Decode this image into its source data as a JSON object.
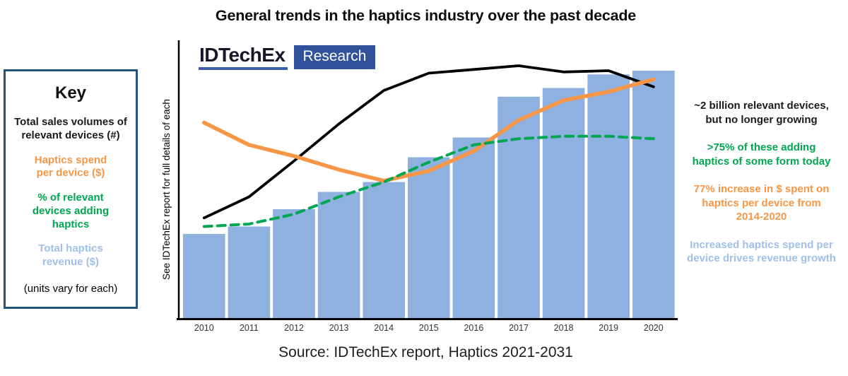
{
  "title": "General trends in the haptics industry over the past decade",
  "logo": {
    "brand": "IDTechEx",
    "sub": "Research"
  },
  "key": {
    "heading": "Key",
    "items": [
      {
        "text": "Total sales volumes of\nrelevant devices (#)",
        "color": "#1a1a1a"
      },
      {
        "text": "Haptics spend\nper device ($)",
        "color": "#F79646"
      },
      {
        "text": "% of relevant\ndevices adding\nhaptics",
        "color": "#00A651"
      },
      {
        "text": "Total haptics\nrevenue ($)",
        "color": "#9FBFEA"
      }
    ],
    "note": "(units vary for each)"
  },
  "ylabel_note": "See IDTechEx report for full details of each",
  "annotations": [
    {
      "text": "~2 billion relevant devices,\nbut no longer growing",
      "color": "#1a1a1a"
    },
    {
      "text": ">75% of these adding\nhaptics of some form today",
      "color": "#00A651"
    },
    {
      "text": "77% increase in $ spent on\nhaptics per device from\n2014-2020",
      "color": "#F79646"
    },
    {
      "text": "Increased haptics spend per\ndevice drives revenue growth",
      "color": "#9FBFEA"
    }
  ],
  "source": "Source: IDTechEx report, Haptics 2021-2031",
  "chart_data": {
    "type": "bar",
    "title": "General trends in the haptics industry over the past decade",
    "x": [
      "2010",
      "2011",
      "2012",
      "2013",
      "2014",
      "2015",
      "2016",
      "2017",
      "2018",
      "2019",
      "2020"
    ],
    "xlabel": "",
    "ylabel": "See IDTechEx report for full details of each",
    "value_note": "Chart has no numeric axes; values are relative heights 0-100 (units vary for each series)",
    "ylim": [
      0,
      105
    ],
    "grid": false,
    "legend_position": "external key box, left",
    "bar_series": {
      "name": "Total haptics revenue ($)",
      "color": "#8FB1E0",
      "values": [
        34,
        37,
        44,
        51,
        55,
        65,
        73,
        89.5,
        93,
        98.5,
        100
      ]
    },
    "line_series": [
      {
        "name": "Total sales volumes of relevant devices (#)",
        "color": "#000000",
        "style": "solid",
        "values": [
          40.5,
          49,
          63.5,
          78.5,
          92,
          99,
          100.5,
          102,
          99.5,
          100,
          93.5
        ]
      },
      {
        "name": "Haptics spend per device ($)",
        "color": "#F79646",
        "style": "solid",
        "values": [
          79,
          70,
          65.5,
          60,
          55.5,
          59.5,
          67.5,
          80,
          88,
          91.5,
          96.5
        ]
      },
      {
        "name": "% of relevant devices adding haptics",
        "color": "#00A651",
        "style": "dashed",
        "values": [
          37,
          38,
          42,
          49,
          55,
          63,
          70,
          72.5,
          73.5,
          73.5,
          72.5
        ]
      }
    ]
  }
}
